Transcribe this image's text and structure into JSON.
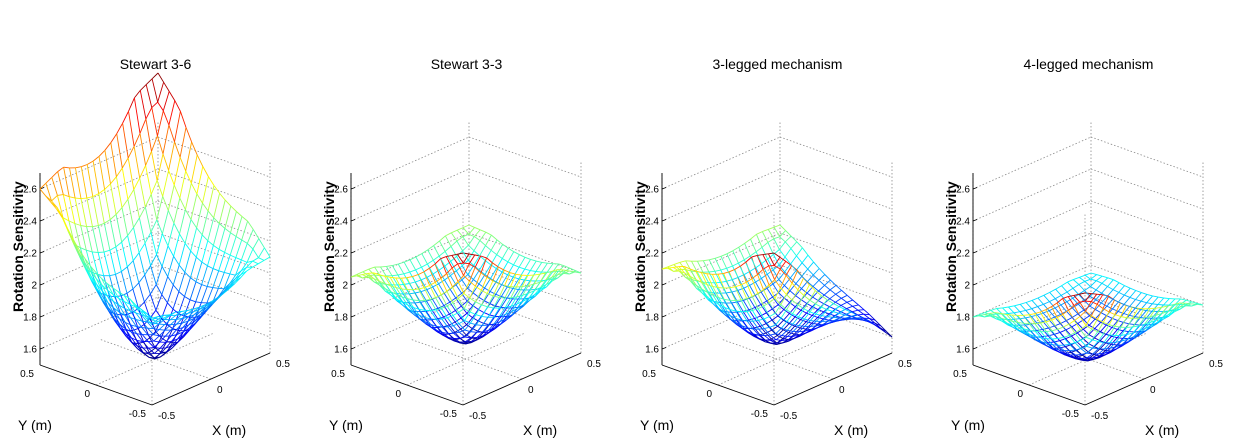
{
  "chart_data": [
    {
      "type": "surface",
      "title": "Stewart 3-6",
      "xlabel": "X (m)",
      "ylabel": "Y (m)",
      "zlabel": "Rotation Sensitivity",
      "xlim": [
        -0.5,
        0.5
      ],
      "ylim": [
        -0.5,
        0.5
      ],
      "zlim": [
        1.5,
        2.7
      ],
      "xticks": [
        "-0.5",
        "0",
        "0.5"
      ],
      "yticks": [
        "0.5",
        "0",
        "-0.5"
      ],
      "zticks": [
        "1.6",
        "1.8",
        "2",
        "2.2",
        "2.4",
        "2.6"
      ],
      "grid": true,
      "colormap": "jet",
      "corner_values": {
        "x-0.5_y0.5": 2.6,
        "x0.5_y0.5": 3.0,
        "x0.5_y-0.5": 2.1,
        "x-0.5_y-0.5": 2.0
      },
      "min_value": 1.5
    },
    {
      "type": "surface",
      "title": "Stewart 3-3",
      "xlabel": "X (m)",
      "ylabel": "Y (m)",
      "zlabel": "Rotation Sensitivity",
      "xlim": [
        -0.5,
        0.5
      ],
      "ylim": [
        -0.5,
        0.5
      ],
      "zlim": [
        1.5,
        2.7
      ],
      "xticks": [
        "-0.5",
        "0",
        "0.5"
      ],
      "yticks": [
        "0.5",
        "0",
        "-0.5"
      ],
      "zticks": [
        "1.6",
        "1.8",
        "2",
        "2.2",
        "2.4",
        "2.6"
      ],
      "grid": true,
      "colormap": "jet",
      "corner_values": {
        "x-0.5_y0.5": 2.05,
        "x0.5_y0.5": 2.05,
        "x0.5_y-0.5": 2.0,
        "x-0.5_y-0.5": 2.45
      },
      "min_value": 1.6
    },
    {
      "type": "surface",
      "title": "3-legged mechanism",
      "xlabel": "X (m)",
      "ylabel": "Y (m)",
      "zlabel": "Rotation Sensitivity",
      "xlim": [
        -0.5,
        0.5
      ],
      "ylim": [
        -0.5,
        0.5
      ],
      "zlim": [
        1.5,
        2.7
      ],
      "xticks": [
        "-0.5",
        "0",
        "0.5"
      ],
      "yticks": [
        "0.5",
        "0",
        "-0.5"
      ],
      "zticks": [
        "1.6",
        "1.8",
        "2",
        "2.2",
        "2.4",
        "2.6"
      ],
      "grid": true,
      "colormap": "jet",
      "corner_values": {
        "x-0.5_y0.5": 2.1,
        "x0.5_y0.5": 2.05,
        "x0.5_y-0.5": 1.6,
        "x-0.5_y-0.5": 2.45
      },
      "min_value": 1.6
    },
    {
      "type": "surface",
      "title": "4-legged mechanism",
      "xlabel": "X (m)",
      "ylabel": "Y (m)",
      "zlabel": "Rotation Sensitivity",
      "xlim": [
        -0.5,
        0.5
      ],
      "ylim": [
        -0.5,
        0.5
      ],
      "zlim": [
        1.5,
        2.7
      ],
      "xticks": [
        "-0.5",
        "0",
        "0.5"
      ],
      "yticks": [
        "0.5",
        "0",
        "-0.5"
      ],
      "zticks": [
        "1.6",
        "1.8",
        "2",
        "2.2",
        "2.4",
        "2.6"
      ],
      "grid": true,
      "colormap": "jet",
      "corner_values": {
        "x-0.5_y0.5": 1.8,
        "x0.5_y0.5": 1.75,
        "x0.5_y-0.5": 1.8,
        "x-0.5_y-0.5": 2.2
      },
      "min_value": 1.5
    }
  ]
}
